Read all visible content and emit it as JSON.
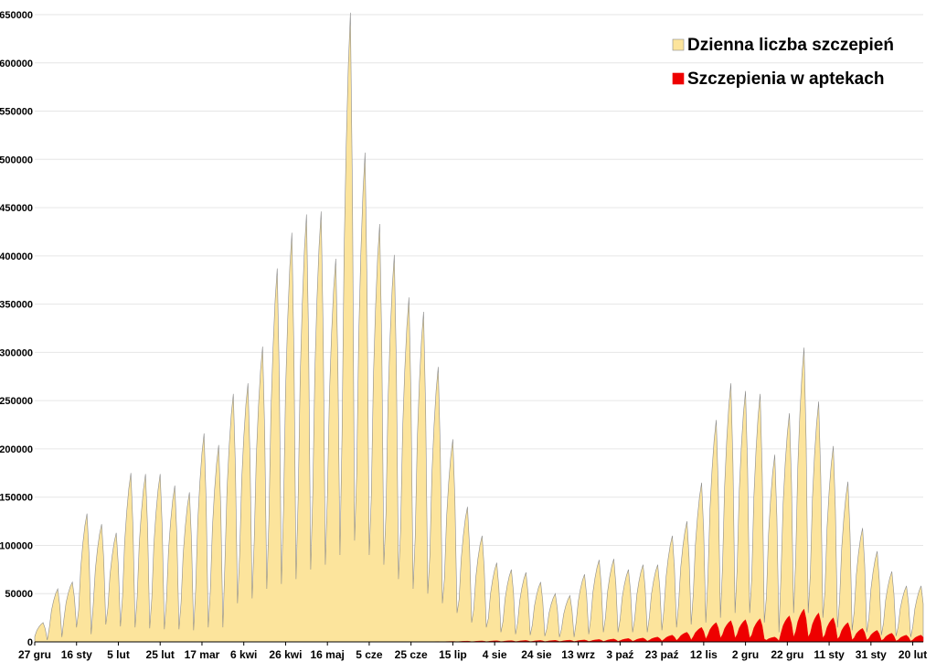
{
  "chart_data": {
    "type": "area",
    "title": "",
    "xlabel": "",
    "ylabel": "",
    "ylim": [
      0,
      650000
    ],
    "yticks": [
      0,
      50000,
      100000,
      150000,
      200000,
      250000,
      300000,
      350000,
      400000,
      450000,
      500000,
      550000,
      600000,
      650000
    ],
    "ytick_labels": [
      "0",
      "50000",
      "100000",
      "150000",
      "200000",
      "250000",
      "300000",
      "350000",
      "400000",
      "450000",
      "500000",
      "550000",
      "600000",
      "650000"
    ],
    "x_start": "2020-12-27",
    "x_end": "2022-02-25",
    "xtick_labels": [
      "27 gru",
      "16 sty",
      "5 lut",
      "25 lut",
      "17 mar",
      "6 kwi",
      "26 kwi",
      "16 maj",
      "5 cze",
      "25 cze",
      "15 lip",
      "4 sie",
      "24 sie",
      "13 wrz",
      "3 paź",
      "23 paź",
      "12 lis",
      "2 gru",
      "22 gru",
      "11 sty",
      "31 sty",
      "20 lut"
    ],
    "grid": true,
    "legend_position": "top-right",
    "series": [
      {
        "name": "Dzienna liczba szczepień",
        "color": "#fce49c",
        "weekly_peak": [
          20000,
          55000,
          62000,
          133000,
          122000,
          113000,
          175000,
          174000,
          174000,
          162000,
          155000,
          216000,
          204000,
          257000,
          268000,
          306000,
          387000,
          424000,
          443000,
          446000,
          397000,
          652000,
          507000,
          433000,
          401000,
          357000,
          342000,
          285000,
          210000,
          140000,
          110000,
          82000,
          75000,
          72000,
          62000,
          50000,
          48000,
          70000,
          85000,
          86000,
          75000,
          80000,
          80000,
          110000,
          125000,
          165000,
          230000,
          268000,
          260000,
          257000,
          194000,
          237000,
          305000,
          249000,
          203000,
          166000,
          118000,
          94000,
          73000,
          58000
        ],
        "weekly_trough": [
          2000,
          5000,
          15000,
          8000,
          18000,
          16000,
          15000,
          14000,
          13000,
          13000,
          12000,
          15000,
          15000,
          40000,
          45000,
          55000,
          60000,
          65000,
          75000,
          80000,
          90000,
          105000,
          90000,
          80000,
          65000,
          55000,
          50000,
          40000,
          30000,
          20000,
          15000,
          10000,
          8000,
          7000,
          6000,
          5000,
          5000,
          8000,
          10000,
          10000,
          10000,
          10000,
          12000,
          15000,
          18000,
          20000,
          25000,
          30000,
          30000,
          20000,
          10000,
          30000,
          30000,
          25000,
          15000,
          12000,
          10000,
          7000,
          6000,
          5000
        ]
      },
      {
        "name": "Szczepienia w aptekach",
        "color": "#ee0000",
        "weekly_peak": [
          0,
          0,
          0,
          0,
          0,
          0,
          0,
          0,
          0,
          0,
          0,
          0,
          0,
          0,
          0,
          0,
          0,
          0,
          0,
          0,
          0,
          0,
          0,
          0,
          0,
          0,
          0,
          300,
          500,
          800,
          1000,
          1200,
          1300,
          1500,
          1500,
          1600,
          1800,
          2000,
          2500,
          3000,
          3500,
          4000,
          5000,
          7000,
          10000,
          15000,
          20000,
          22000,
          23000,
          24000,
          5000,
          27000,
          34000,
          30000,
          25000,
          20000,
          14000,
          12000,
          9000,
          7000
        ],
        "weekly_trough": [
          0,
          0,
          0,
          0,
          0,
          0,
          0,
          0,
          0,
          0,
          0,
          0,
          0,
          0,
          0,
          0,
          0,
          0,
          0,
          0,
          0,
          0,
          0,
          0,
          0,
          0,
          0,
          0,
          100,
          200,
          200,
          300,
          300,
          300,
          300,
          400,
          400,
          500,
          500,
          600,
          700,
          800,
          1000,
          1500,
          2000,
          3000,
          4000,
          4000,
          4000,
          3000,
          1000,
          5000,
          5000,
          4000,
          3000,
          2000,
          2000,
          1500,
          1000,
          800
        ]
      }
    ]
  }
}
